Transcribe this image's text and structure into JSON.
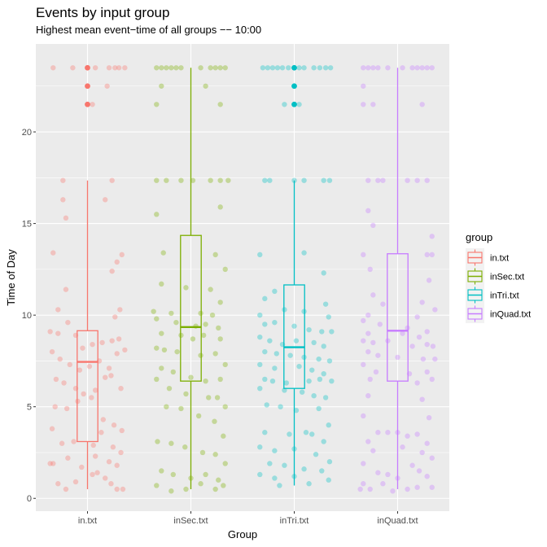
{
  "chart_data": {
    "type": "boxplot",
    "title": "Events by input group",
    "subtitle": "Highest mean event−time of all groups −− 10:00",
    "xlabel": "Group",
    "ylabel": "Time of Day",
    "categories": [
      "in.txt",
      "inSec.txt",
      "inTri.txt",
      "inQuad.txt"
    ],
    "ylim": [
      -0.7,
      24.8
    ],
    "yticks": [
      0,
      5,
      10,
      15,
      20
    ],
    "grid": true,
    "legend": {
      "title": "group",
      "position": "right"
    },
    "colors": {
      "in.txt": "#F8766D",
      "inSec.txt": "#7CAE00",
      "inTri.txt": "#00BFC4",
      "inQuad.txt": "#C77CFF"
    },
    "boxes": [
      {
        "group": "in.txt",
        "whisker_low": 0.5,
        "q1": 3.1,
        "median": 7.45,
        "q3": 9.15,
        "whisker_high": 17.35,
        "outliers": [
          21.5,
          22.5,
          23.5
        ]
      },
      {
        "group": "inSec.txt",
        "whisker_low": 0.5,
        "q1": 6.4,
        "median": 9.35,
        "q3": 14.35,
        "whisker_high": 23.5,
        "outliers": []
      },
      {
        "group": "inTri.txt",
        "whisker_low": 0.7,
        "q1": 6.0,
        "median": 8.25,
        "q3": 11.65,
        "whisker_high": 17.35,
        "outliers": [
          21.5,
          22.5,
          23.5
        ]
      },
      {
        "group": "inQuad.txt",
        "whisker_low": 0.5,
        "q1": 6.4,
        "median": 9.15,
        "q3": 13.35,
        "whisker_high": 23.5,
        "outliers": []
      }
    ],
    "points": {
      "in.txt": [
        [
          -0.35,
          23.5
        ],
        [
          -0.15,
          23.5
        ],
        [
          0.08,
          23.5
        ],
        [
          0.22,
          23.5
        ],
        [
          0.28,
          23.5
        ],
        [
          0.32,
          23.5
        ],
        [
          0.38,
          23.5
        ],
        [
          -0.25,
          17.35
        ],
        [
          0.25,
          17.35
        ],
        [
          0.05,
          21.5
        ],
        [
          0.2,
          22.5
        ],
        [
          -0.22,
          15.3
        ],
        [
          -0.25,
          16.3
        ],
        [
          0.18,
          16.3
        ],
        [
          -0.35,
          13.4
        ],
        [
          0.35,
          13.3
        ],
        [
          0.25,
          12.4
        ],
        [
          0.3,
          12.9
        ],
        [
          -0.22,
          11.4
        ],
        [
          -0.3,
          10.3
        ],
        [
          0.33,
          10.3
        ],
        [
          0.28,
          9.9
        ],
        [
          -0.38,
          9.1
        ],
        [
          -0.3,
          9.0
        ],
        [
          -0.2,
          9.6
        ],
        [
          -0.12,
          8.9
        ],
        [
          -0.05,
          8.2
        ],
        [
          0.05,
          8.4
        ],
        [
          0.15,
          8.5
        ],
        [
          0.25,
          8.6
        ],
        [
          0.32,
          8.7
        ],
        [
          0.38,
          8.1
        ],
        [
          -0.36,
          8.0
        ],
        [
          -0.28,
          7.6
        ],
        [
          -0.18,
          7.3
        ],
        [
          -0.08,
          7.0
        ],
        [
          0.02,
          7.2
        ],
        [
          0.12,
          7.5
        ],
        [
          0.22,
          7.1
        ],
        [
          0.3,
          7.9
        ],
        [
          -0.32,
          6.5
        ],
        [
          -0.24,
          6.3
        ],
        [
          -0.12,
          6.0
        ],
        [
          -0.04,
          5.7
        ],
        [
          0.08,
          5.9
        ],
        [
          0.18,
          6.6
        ],
        [
          0.24,
          6.7
        ],
        [
          0.34,
          6.0
        ],
        [
          -0.33,
          5.0
        ],
        [
          -0.21,
          4.9
        ],
        [
          -0.1,
          5.3
        ],
        [
          0.04,
          5.5
        ],
        [
          0.16,
          4.3
        ],
        [
          0.27,
          4.0
        ],
        [
          0.35,
          3.7
        ],
        [
          -0.36,
          3.8
        ],
        [
          -0.26,
          3.0
        ],
        [
          -0.14,
          3.1
        ],
        [
          0.06,
          2.9
        ],
        [
          0.14,
          3.6
        ],
        [
          0.26,
          2.8
        ],
        [
          0.34,
          2.5
        ],
        [
          -0.35,
          1.9
        ],
        [
          -0.38,
          1.9
        ],
        [
          -0.2,
          2.2
        ],
        [
          0.08,
          2.3
        ],
        [
          0.22,
          2.0
        ],
        [
          0.3,
          1.8
        ],
        [
          -0.3,
          0.8
        ],
        [
          -0.22,
          0.5
        ],
        [
          -0.12,
          0.9
        ],
        [
          0.05,
          1.3
        ],
        [
          0.1,
          1.4
        ],
        [
          0.24,
          0.8
        ],
        [
          0.3,
          0.5
        ],
        [
          0.36,
          0.5
        ],
        [
          -0.06,
          1.7
        ],
        [
          0.18,
          1.1
        ]
      ],
      "inSec.txt": [
        [
          -0.35,
          23.5
        ],
        [
          -0.3,
          23.5
        ],
        [
          -0.25,
          23.5
        ],
        [
          -0.2,
          23.5
        ],
        [
          -0.15,
          23.5
        ],
        [
          -0.1,
          23.5
        ],
        [
          0.1,
          23.5
        ],
        [
          0.2,
          23.5
        ],
        [
          0.25,
          23.5
        ],
        [
          0.3,
          23.5
        ],
        [
          0.35,
          23.5
        ],
        [
          -0.3,
          22.5
        ],
        [
          0.15,
          22.5
        ],
        [
          -0.35,
          21.5
        ],
        [
          0.3,
          21.5
        ],
        [
          -0.35,
          17.35
        ],
        [
          -0.25,
          17.35
        ],
        [
          -0.1,
          17.35
        ],
        [
          0.02,
          17.35
        ],
        [
          0.2,
          17.35
        ],
        [
          0.3,
          17.35
        ],
        [
          0.38,
          17.35
        ],
        [
          -0.35,
          15.5
        ],
        [
          0.3,
          15.9
        ],
        [
          -0.28,
          13.4
        ],
        [
          0.25,
          13.3
        ],
        [
          0.35,
          12.5
        ],
        [
          -0.3,
          11.7
        ],
        [
          -0.05,
          11.5
        ],
        [
          0.2,
          11.4
        ],
        [
          0.3,
          10.7
        ],
        [
          -0.38,
          10.2
        ],
        [
          -0.2,
          10.1
        ],
        [
          0.1,
          10.1
        ],
        [
          0.22,
          10.0
        ],
        [
          -0.35,
          9.8
        ],
        [
          -0.15,
          9.6
        ],
        [
          0.05,
          9.4
        ],
        [
          0.15,
          9.5
        ],
        [
          0.28,
          9.3
        ],
        [
          -0.3,
          9.0
        ],
        [
          -0.1,
          8.9
        ],
        [
          0.02,
          8.7
        ],
        [
          0.13,
          8.9
        ],
        [
          0.3,
          8.7
        ],
        [
          -0.35,
          8.2
        ],
        [
          -0.27,
          8.1
        ],
        [
          -0.14,
          8.0
        ],
        [
          0.1,
          7.8
        ],
        [
          0.25,
          7.9
        ],
        [
          0.35,
          7.3
        ],
        [
          -0.3,
          7.1
        ],
        [
          -0.18,
          6.9
        ],
        [
          0.0,
          6.6
        ],
        [
          0.15,
          6.4
        ],
        [
          0.3,
          6.5
        ],
        [
          -0.35,
          6.5
        ],
        [
          -0.22,
          6.0
        ],
        [
          -0.05,
          5.7
        ],
        [
          0.18,
          5.5
        ],
        [
          0.27,
          5.5
        ],
        [
          0.35,
          5.0
        ],
        [
          -0.25,
          5.0
        ],
        [
          -0.1,
          4.9
        ],
        [
          0.08,
          4.5
        ],
        [
          0.24,
          4.2
        ],
        [
          0.33,
          3.4
        ],
        [
          -0.34,
          3.1
        ],
        [
          -0.2,
          3.0
        ],
        [
          -0.06,
          2.8
        ],
        [
          0.12,
          2.5
        ],
        [
          0.25,
          2.4
        ],
        [
          0.35,
          1.9
        ],
        [
          -0.3,
          1.5
        ],
        [
          -0.18,
          1.3
        ],
        [
          0.0,
          1.1
        ],
        [
          0.15,
          1.3
        ],
        [
          0.28,
          1.0
        ],
        [
          -0.35,
          0.7
        ],
        [
          -0.2,
          0.4
        ],
        [
          -0.05,
          0.5
        ],
        [
          0.1,
          0.8
        ],
        [
          0.25,
          0.5
        ],
        [
          0.33,
          0.7
        ]
      ],
      "inTri.txt": [
        [
          -0.32,
          23.5
        ],
        [
          -0.27,
          23.5
        ],
        [
          -0.22,
          23.5
        ],
        [
          -0.17,
          23.5
        ],
        [
          -0.12,
          23.5
        ],
        [
          -0.06,
          23.5
        ],
        [
          0.05,
          23.5
        ],
        [
          0.1,
          23.5
        ],
        [
          0.2,
          23.5
        ],
        [
          0.26,
          23.5
        ],
        [
          0.32,
          23.5
        ],
        [
          0.37,
          23.5
        ],
        [
          0.05,
          21.5
        ],
        [
          -0.1,
          21.5
        ],
        [
          -0.3,
          17.35
        ],
        [
          -0.25,
          17.35
        ],
        [
          0.0,
          17.35
        ],
        [
          0.1,
          17.35
        ],
        [
          0.3,
          17.35
        ],
        [
          0.36,
          17.35
        ],
        [
          -0.35,
          13.3
        ],
        [
          0.1,
          13.4
        ],
        [
          0.3,
          12.3
        ],
        [
          -0.2,
          11.3
        ],
        [
          -0.3,
          10.9
        ],
        [
          0.32,
          10.6
        ],
        [
          -0.35,
          10.0
        ],
        [
          -0.1,
          10.3
        ],
        [
          0.1,
          10.2
        ],
        [
          0.35,
          9.9
        ],
        [
          -0.3,
          9.5
        ],
        [
          -0.2,
          9.6
        ],
        [
          0.0,
          9.4
        ],
        [
          0.15,
          9.2
        ],
        [
          0.28,
          9.1
        ],
        [
          0.38,
          9.1
        ],
        [
          -0.35,
          8.8
        ],
        [
          -0.25,
          8.6
        ],
        [
          -0.12,
          8.4
        ],
        [
          0.02,
          8.6
        ],
        [
          0.2,
          8.5
        ],
        [
          0.3,
          8.3
        ],
        [
          -0.3,
          8.0
        ],
        [
          -0.18,
          7.9
        ],
        [
          -0.04,
          7.8
        ],
        [
          0.1,
          7.7
        ],
        [
          0.25,
          7.6
        ],
        [
          0.36,
          7.5
        ],
        [
          -0.35,
          7.3
        ],
        [
          -0.2,
          7.1
        ],
        [
          0.05,
          7.2
        ],
        [
          0.18,
          7.0
        ],
        [
          0.3,
          6.8
        ],
        [
          -0.3,
          6.5
        ],
        [
          -0.22,
          6.4
        ],
        [
          -0.08,
          6.3
        ],
        [
          0.15,
          6.4
        ],
        [
          0.26,
          6.5
        ],
        [
          0.38,
          6.4
        ],
        [
          -0.35,
          6.0
        ],
        [
          -0.1,
          5.9
        ],
        [
          0.08,
          5.8
        ],
        [
          0.2,
          5.6
        ],
        [
          0.32,
          5.5
        ],
        [
          -0.28,
          5.1
        ],
        [
          -0.14,
          5.0
        ],
        [
          0.02,
          4.8
        ],
        [
          0.25,
          4.9
        ],
        [
          0.35,
          4.0
        ],
        [
          -0.3,
          3.6
        ],
        [
          -0.05,
          3.5
        ],
        [
          0.12,
          3.6
        ],
        [
          0.18,
          3.5
        ],
        [
          0.3,
          3.1
        ],
        [
          -0.35,
          2.8
        ],
        [
          -0.2,
          2.6
        ],
        [
          0.0,
          2.7
        ],
        [
          0.22,
          2.4
        ],
        [
          0.36,
          2.0
        ],
        [
          -0.25,
          1.9
        ],
        [
          -0.1,
          1.8
        ],
        [
          0.1,
          1.6
        ],
        [
          0.28,
          1.5
        ],
        [
          -0.35,
          1.3
        ],
        [
          -0.2,
          1.1
        ],
        [
          0.0,
          1.2
        ],
        [
          0.15,
          0.8
        ],
        [
          0.35,
          1.0
        ],
        [
          -0.15,
          0.7
        ]
      ],
      "inQuad.txt": [
        [
          -0.35,
          23.5
        ],
        [
          -0.3,
          23.5
        ],
        [
          -0.25,
          23.5
        ],
        [
          -0.2,
          23.5
        ],
        [
          -0.1,
          23.5
        ],
        [
          0.05,
          23.5
        ],
        [
          0.15,
          23.5
        ],
        [
          0.2,
          23.5
        ],
        [
          0.25,
          23.5
        ],
        [
          0.3,
          23.5
        ],
        [
          0.35,
          23.5
        ],
        [
          -0.35,
          22.5
        ],
        [
          -0.25,
          21.5
        ],
        [
          -0.35,
          21.5
        ],
        [
          0.25,
          21.5
        ],
        [
          -0.3,
          17.35
        ],
        [
          -0.2,
          17.35
        ],
        [
          -0.15,
          17.35
        ],
        [
          0.1,
          17.35
        ],
        [
          0.2,
          17.35
        ],
        [
          0.3,
          17.35
        ],
        [
          -0.3,
          15.7
        ],
        [
          -0.25,
          14.9
        ],
        [
          0.35,
          14.3
        ],
        [
          -0.35,
          13.3
        ],
        [
          0.3,
          13.3
        ],
        [
          0.35,
          13.3
        ],
        [
          -0.28,
          12.5
        ],
        [
          0.32,
          11.9
        ],
        [
          -0.25,
          11.1
        ],
        [
          0.25,
          10.7
        ],
        [
          -0.3,
          10.0
        ],
        [
          -0.15,
          10.6
        ],
        [
          0.2,
          9.9
        ],
        [
          0.38,
          10.3
        ],
        [
          -0.35,
          9.7
        ],
        [
          -0.18,
          9.5
        ],
        [
          0.1,
          9.3
        ],
        [
          0.3,
          9.1
        ],
        [
          -0.3,
          9.0
        ],
        [
          0.05,
          9.0
        ],
        [
          0.22,
          8.8
        ],
        [
          -0.35,
          8.6
        ],
        [
          -0.25,
          8.5
        ],
        [
          -0.1,
          8.6
        ],
        [
          0.15,
          8.3
        ],
        [
          0.3,
          8.4
        ],
        [
          0.36,
          8.3
        ],
        [
          -0.3,
          8.0
        ],
        [
          -0.2,
          7.8
        ],
        [
          0.0,
          7.7
        ],
        [
          0.26,
          7.6
        ],
        [
          0.38,
          7.6
        ],
        [
          -0.35,
          7.3
        ],
        [
          -0.22,
          6.9
        ],
        [
          0.12,
          6.8
        ],
        [
          0.3,
          6.9
        ],
        [
          -0.28,
          6.5
        ],
        [
          0.2,
          6.3
        ],
        [
          0.35,
          6.5
        ],
        [
          -0.3,
          5.6
        ],
        [
          0.25,
          5.4
        ],
        [
          -0.35,
          4.5
        ],
        [
          0.32,
          4.4
        ],
        [
          -0.2,
          3.6
        ],
        [
          -0.1,
          3.6
        ],
        [
          0.0,
          3.6
        ],
        [
          0.1,
          3.4
        ],
        [
          0.2,
          3.5
        ],
        [
          -0.3,
          3.1
        ],
        [
          0.3,
          3.0
        ],
        [
          -0.25,
          2.6
        ],
        [
          0.05,
          2.8
        ],
        [
          0.25,
          2.5
        ],
        [
          0.35,
          2.2
        ],
        [
          -0.35,
          1.9
        ],
        [
          0.15,
          1.8
        ],
        [
          -0.2,
          1.4
        ],
        [
          -0.1,
          1.3
        ],
        [
          0.0,
          1.1
        ],
        [
          0.22,
          1.5
        ],
        [
          0.3,
          1.2
        ],
        [
          -0.35,
          0.8
        ],
        [
          -0.38,
          0.5
        ],
        [
          -0.28,
          0.5
        ],
        [
          -0.15,
          0.8
        ],
        [
          0.1,
          0.5
        ],
        [
          0.2,
          0.6
        ],
        [
          0.35,
          0.6
        ],
        [
          -0.05,
          0.4
        ]
      ]
    }
  }
}
